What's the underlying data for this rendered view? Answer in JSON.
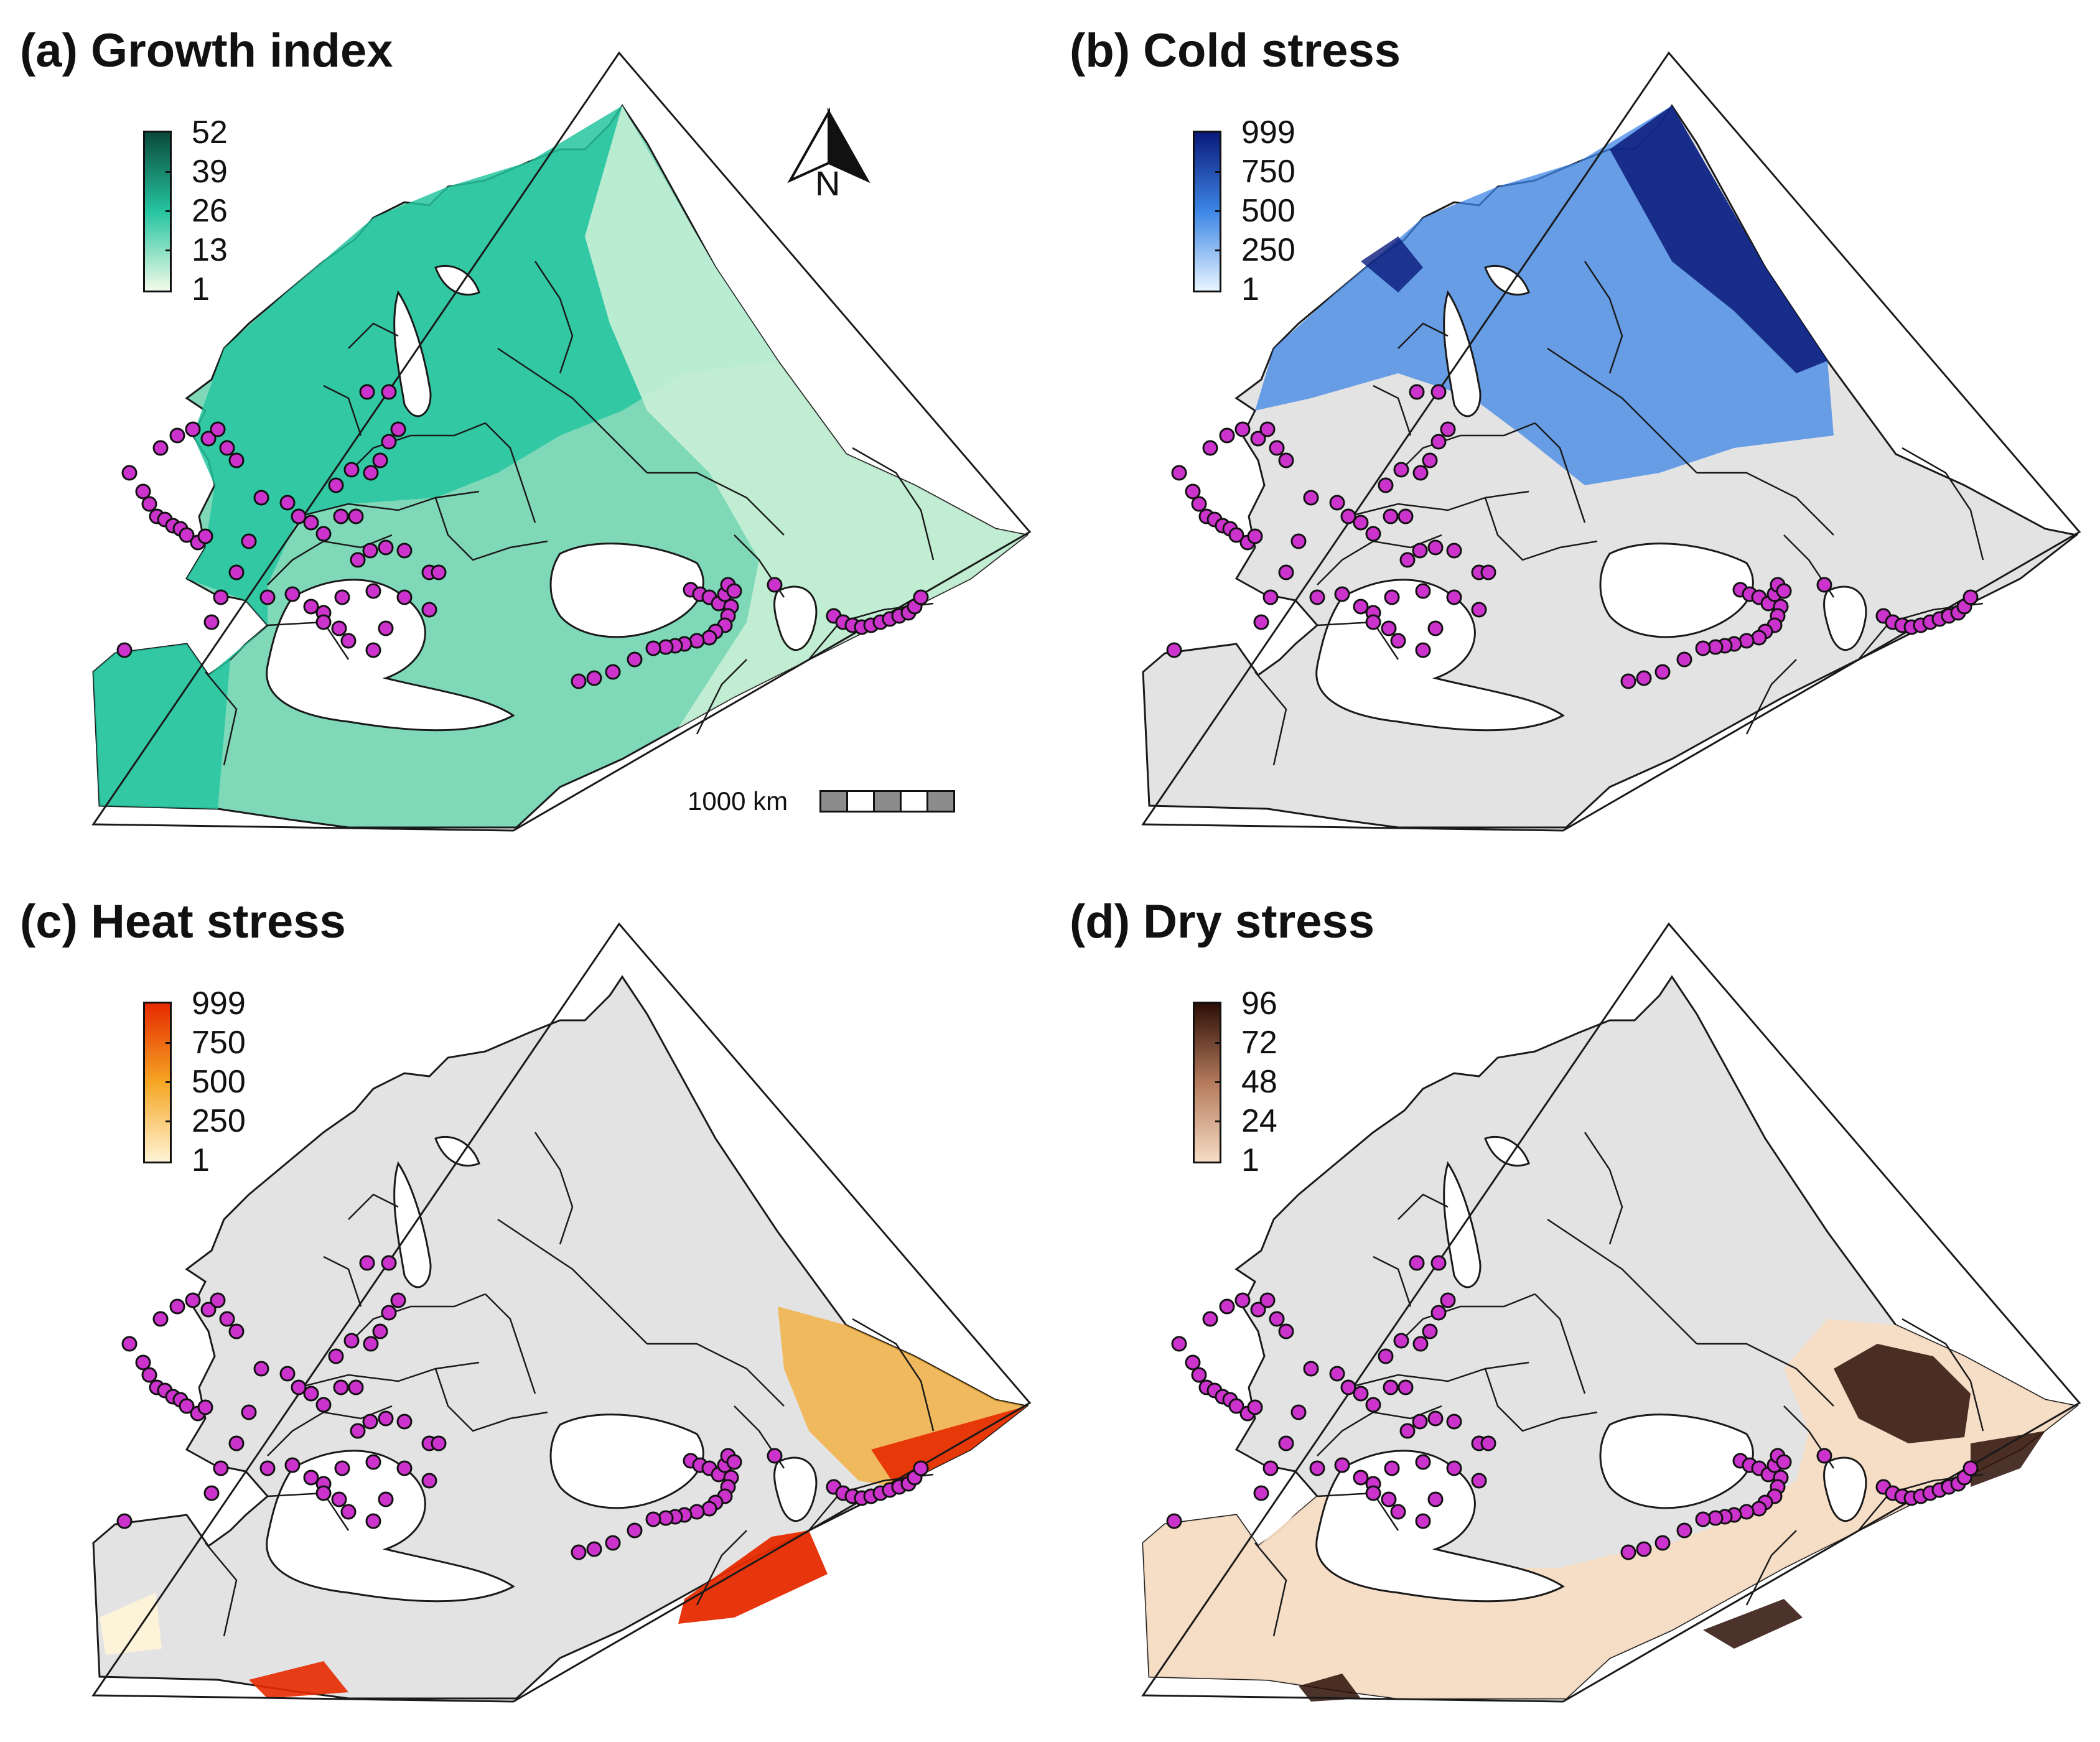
{
  "figure": {
    "panels": [
      {
        "id": "a",
        "title": "(a) Growth index",
        "variable": "growth_index",
        "legend_labels": [
          "52",
          "39",
          "26",
          "13",
          "1"
        ],
        "color_low": "#f2fbe9",
        "color_mid": "#25c4a0",
        "color_high": "#0a4a3a",
        "land_fill": "#7fd9b8",
        "land_fill_east": "#c9f0d6",
        "show_north_arrow": true,
        "show_scale_bar": true
      },
      {
        "id": "b",
        "title": "(b) Cold stress",
        "variable": "cold_stress",
        "legend_labels": [
          "999",
          "750",
          "500",
          "250",
          "1"
        ],
        "color_low": "#e8f5ff",
        "color_mid": "#3d86e6",
        "color_high": "#0a1a7a",
        "show_north_arrow": false,
        "show_scale_bar": false
      },
      {
        "id": "c",
        "title": "(c) Heat stress",
        "variable": "heat_stress",
        "legend_labels": [
          "999",
          "750",
          "500",
          "250",
          "1"
        ],
        "color_low": "#fff4d6",
        "color_mid": "#f5a623",
        "color_high": "#e62a00",
        "show_north_arrow": false,
        "show_scale_bar": false
      },
      {
        "id": "d",
        "title": "(d) Dry stress",
        "variable": "dry_stress",
        "legend_labels": [
          "96",
          "72",
          "48",
          "24",
          "1"
        ],
        "color_low": "#f6dcc4",
        "color_mid": "#b47a5c",
        "color_high": "#2c0e06",
        "show_north_arrow": false,
        "show_scale_bar": false
      }
    ],
    "north_arrow_label": "N",
    "scale_bar_label": "1000 km",
    "colors": {
      "no_data_land": "#e3e3e3",
      "water": "#ffffff",
      "border": "#1a1a1a",
      "occurrence_point": "#cc33cc",
      "occurrence_outline": "#111111"
    }
  }
}
